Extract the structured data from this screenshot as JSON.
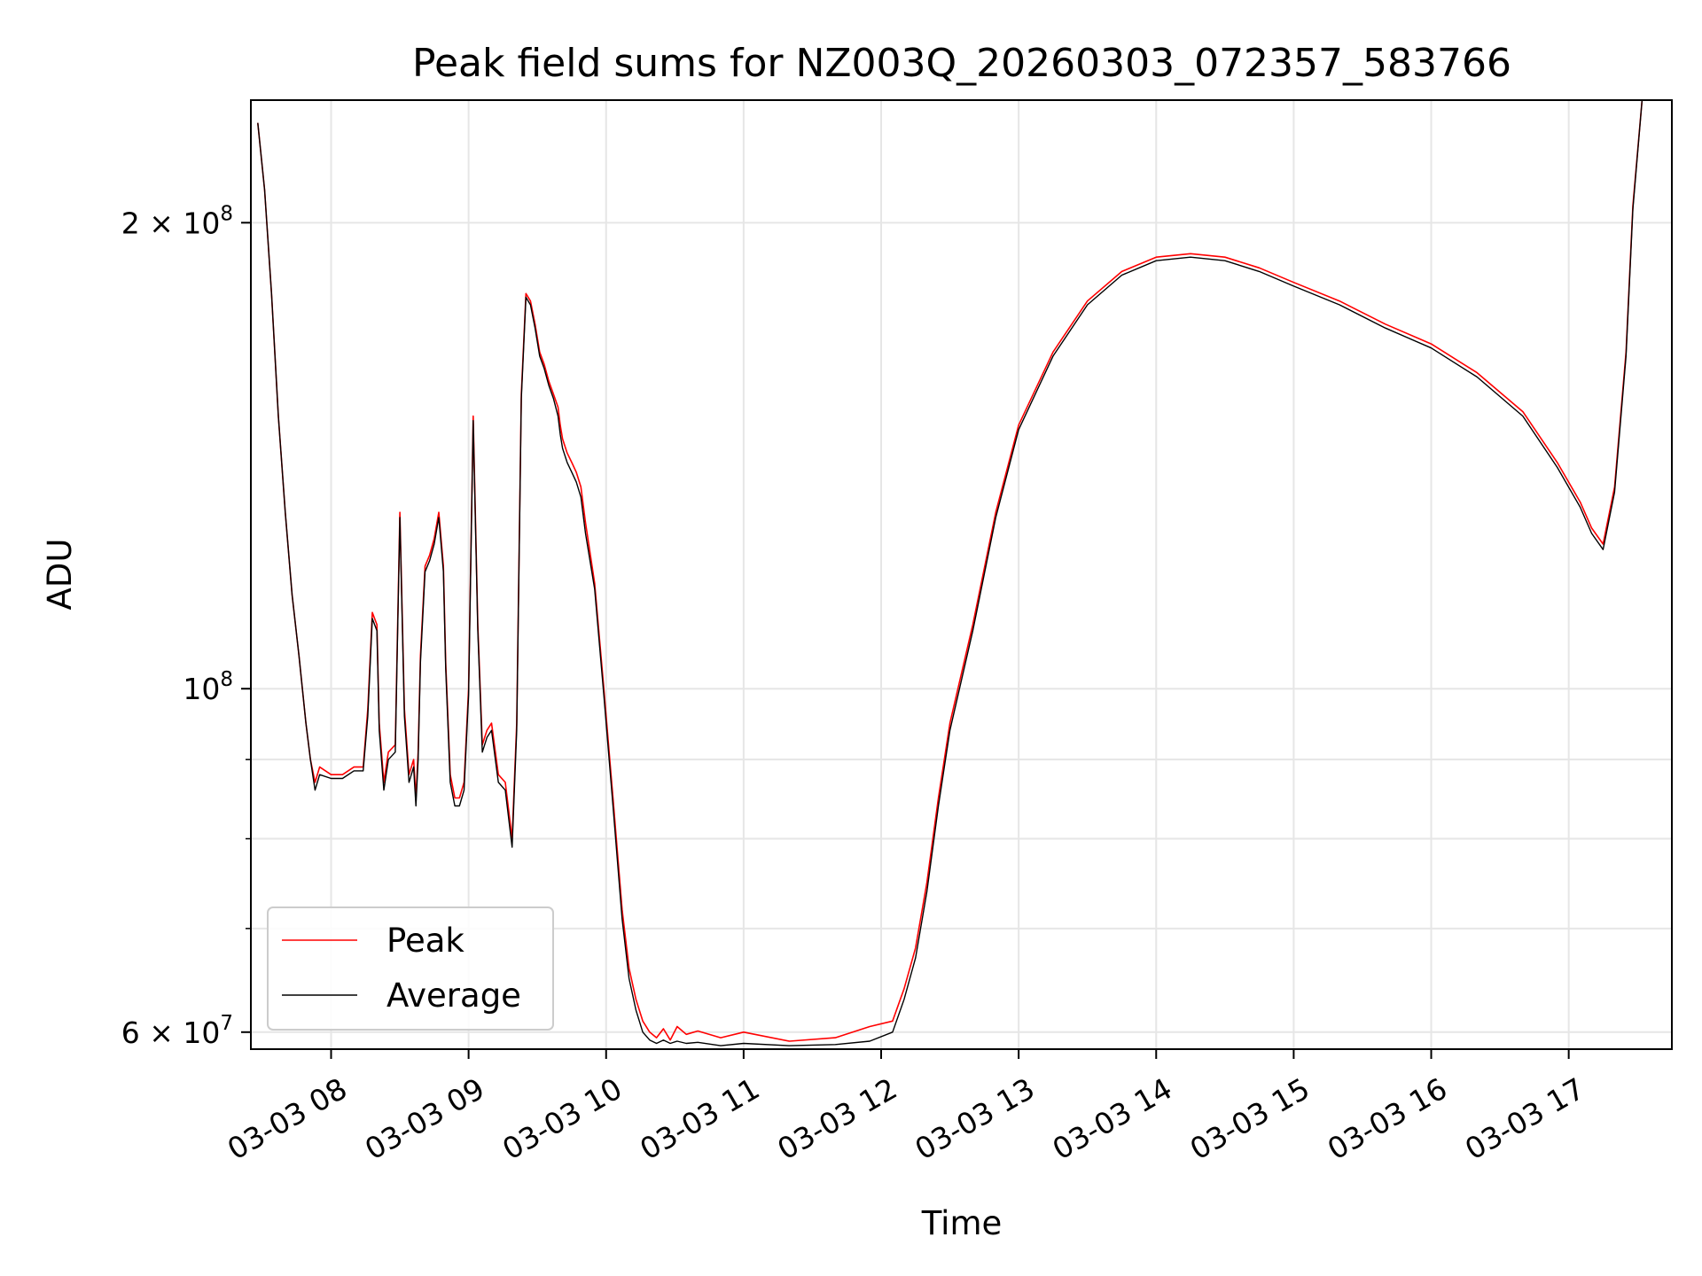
{
  "chart_data": {
    "type": "line",
    "title": "Peak field sums for NZ003Q_20260303_072357_583766",
    "xlabel": "Time",
    "ylabel": "ADU",
    "yscale": "log",
    "grid": true,
    "legend_position": "lower-left",
    "xlim": [
      "2026-03-03 07:25",
      "2026-03-03 17:45"
    ],
    "ylim": [
      58500000,
      240000000
    ],
    "x_tick_labels": [
      "03-03 08",
      "03-03 09",
      "03-03 10",
      "03-03 11",
      "03-03 12",
      "03-03 13",
      "03-03 14",
      "03-03 15",
      "03-03 16",
      "03-03 17"
    ],
    "x_ticks": [
      "2026-03-03 08:00",
      "2026-03-03 09:00",
      "2026-03-03 10:00",
      "2026-03-03 11:00",
      "2026-03-03 12:00",
      "2026-03-03 13:00",
      "2026-03-03 14:00",
      "2026-03-03 15:00",
      "2026-03-03 16:00",
      "2026-03-03 17:00"
    ],
    "y_major_ticks": [
      {
        "value": 60000000,
        "base": "6 × 10",
        "exp": "7"
      },
      {
        "value": 100000000,
        "base": "10",
        "exp": "8"
      },
      {
        "value": 200000000,
        "base": "2 × 10",
        "exp": "8"
      }
    ],
    "y_minor_gridlines": [
      70000000,
      80000000,
      90000000
    ],
    "series": [
      {
        "name": "Peak",
        "color": "#ff0000",
        "x": [
          "07:28",
          "07:31",
          "07:34",
          "07:37",
          "07:40",
          "07:43",
          "07:46",
          "07:49",
          "07:51",
          "07:53",
          "07:55",
          "08:00",
          "08:05",
          "08:10",
          "08:14",
          "08:16",
          "08:18",
          "08:20",
          "08:21",
          "08:23",
          "08:25",
          "08:28",
          "08:30",
          "08:32",
          "08:34",
          "08:36",
          "08:37",
          "08:38",
          "08:39",
          "08:41",
          "08:43",
          "08:45",
          "08:47",
          "08:49",
          "08:50",
          "08:52",
          "08:54",
          "08:56",
          "08:58",
          "09:00",
          "09:02",
          "09:04",
          "09:06",
          "09:08",
          "09:10",
          "09:13",
          "09:16",
          "09:19",
          "09:21",
          "09:23",
          "09:25",
          "09:27",
          "09:29",
          "09:31",
          "09:33",
          "09:35",
          "09:37",
          "09:39",
          "09:40",
          "09:41",
          "09:43",
          "09:45",
          "09:47",
          "09:49",
          "09:51",
          "09:55",
          "09:59",
          "10:03",
          "10:07",
          "10:10",
          "10:13",
          "10:16",
          "10:19",
          "10:22",
          "10:25",
          "10:28",
          "10:31",
          "10:35",
          "10:40",
          "10:50",
          "11:00",
          "11:20",
          "11:40",
          "11:55",
          "12:05",
          "12:10",
          "12:15",
          "12:20",
          "12:25",
          "12:30",
          "12:40",
          "12:50",
          "13:00",
          "13:15",
          "13:30",
          "13:45",
          "14:00",
          "14:15",
          "14:30",
          "14:45",
          "15:00",
          "15:20",
          "15:40",
          "16:00",
          "16:20",
          "16:40",
          "16:55",
          "17:05",
          "17:10",
          "17:15",
          "17:20",
          "17:25",
          "17:28",
          "17:32",
          "17:35"
        ],
        "y": [
          232000000,
          210000000,
          180000000,
          150000000,
          130000000,
          115000000,
          105000000,
          95000000,
          90000000,
          87000000,
          89000000,
          88000000,
          88000000,
          89000000,
          89000000,
          97000000,
          112000000,
          110000000,
          95000000,
          87000000,
          91000000,
          92000000,
          130000000,
          97000000,
          88000000,
          90000000,
          85000000,
          91000000,
          105000000,
          120000000,
          122000000,
          125000000,
          130000000,
          120000000,
          104000000,
          88000000,
          85000000,
          85000000,
          87000000,
          100000000,
          150000000,
          110000000,
          92000000,
          94000000,
          95000000,
          88000000,
          87000000,
          80000000,
          95000000,
          155000000,
          180000000,
          178000000,
          172000000,
          165000000,
          162000000,
          158000000,
          155000000,
          152000000,
          148000000,
          145000000,
          142000000,
          140000000,
          138000000,
          135000000,
          128000000,
          117000000,
          100000000,
          85000000,
          72000000,
          66000000,
          63000000,
          61000000,
          60000000,
          59500000,
          60300000,
          59300000,
          60500000,
          59800000,
          60100000,
          59500000,
          60000000,
          59200000,
          59500000,
          60500000,
          61000000,
          64000000,
          68000000,
          75000000,
          85000000,
          95000000,
          110000000,
          130000000,
          148000000,
          165000000,
          178000000,
          186000000,
          190000000,
          191000000,
          190000000,
          187000000,
          183000000,
          178000000,
          172000000,
          167000000,
          160000000,
          151000000,
          140000000,
          132000000,
          127000000,
          124000000,
          135000000,
          165000000,
          205000000,
          240000000,
          240000000
        ]
      },
      {
        "name": "Average",
        "color": "#000000",
        "x": [
          "07:28",
          "07:31",
          "07:34",
          "07:37",
          "07:40",
          "07:43",
          "07:46",
          "07:49",
          "07:51",
          "07:53",
          "07:55",
          "08:00",
          "08:05",
          "08:10",
          "08:14",
          "08:16",
          "08:18",
          "08:20",
          "08:21",
          "08:23",
          "08:25",
          "08:28",
          "08:30",
          "08:32",
          "08:34",
          "08:36",
          "08:37",
          "08:38",
          "08:39",
          "08:41",
          "08:43",
          "08:45",
          "08:47",
          "08:49",
          "08:50",
          "08:52",
          "08:54",
          "08:56",
          "08:58",
          "09:00",
          "09:02",
          "09:04",
          "09:06",
          "09:08",
          "09:10",
          "09:13",
          "09:16",
          "09:19",
          "09:21",
          "09:23",
          "09:25",
          "09:27",
          "09:29",
          "09:31",
          "09:33",
          "09:35",
          "09:37",
          "09:39",
          "09:40",
          "09:41",
          "09:43",
          "09:45",
          "09:47",
          "09:49",
          "09:51",
          "09:55",
          "09:59",
          "10:03",
          "10:07",
          "10:10",
          "10:13",
          "10:16",
          "10:19",
          "10:22",
          "10:25",
          "10:28",
          "10:31",
          "10:35",
          "10:40",
          "10:50",
          "11:00",
          "11:20",
          "11:40",
          "11:55",
          "12:05",
          "12:10",
          "12:15",
          "12:20",
          "12:25",
          "12:30",
          "12:40",
          "12:50",
          "13:00",
          "13:15",
          "13:30",
          "13:45",
          "14:00",
          "14:15",
          "14:30",
          "14:45",
          "15:00",
          "15:20",
          "15:40",
          "16:00",
          "16:20",
          "16:40",
          "16:55",
          "17:05",
          "17:10",
          "17:15",
          "17:20",
          "17:25",
          "17:28",
          "17:32",
          "17:35"
        ],
        "y": [
          232000000,
          210000000,
          180000000,
          150000000,
          130000000,
          115000000,
          105000000,
          95000000,
          90000000,
          86000000,
          88000000,
          87500000,
          87500000,
          88500000,
          88500000,
          96000000,
          111000000,
          109000000,
          94000000,
          86000000,
          90000000,
          91000000,
          129000000,
          96000000,
          87000000,
          89000000,
          84000000,
          90000000,
          104000000,
          119000000,
          121000000,
          124000000,
          129000000,
          119000000,
          103000000,
          87000000,
          84000000,
          84000000,
          86000000,
          99000000,
          149000000,
          109000000,
          91000000,
          93000000,
          94000000,
          87000000,
          86000000,
          79000000,
          94000000,
          154000000,
          179000000,
          177000000,
          171000000,
          164000000,
          161000000,
          157000000,
          154000000,
          150000000,
          146000000,
          143000000,
          140000000,
          138000000,
          136000000,
          133000000,
          126000000,
          116000000,
          99000000,
          84000000,
          71000000,
          65000000,
          62000000,
          60000000,
          59300000,
          59000000,
          59300000,
          59000000,
          59200000,
          59000000,
          59100000,
          58800000,
          59000000,
          58800000,
          58900000,
          59200000,
          60000000,
          63000000,
          67000000,
          74000000,
          84000000,
          94000000,
          109000000,
          129000000,
          147000000,
          164000000,
          177000000,
          185000000,
          189000000,
          190000000,
          189000000,
          186000000,
          182000000,
          177000000,
          171000000,
          166000000,
          159000000,
          150000000,
          139000000,
          131000000,
          126000000,
          123000000,
          134000000,
          164000000,
          204000000,
          240000000,
          240000000
        ]
      }
    ]
  }
}
